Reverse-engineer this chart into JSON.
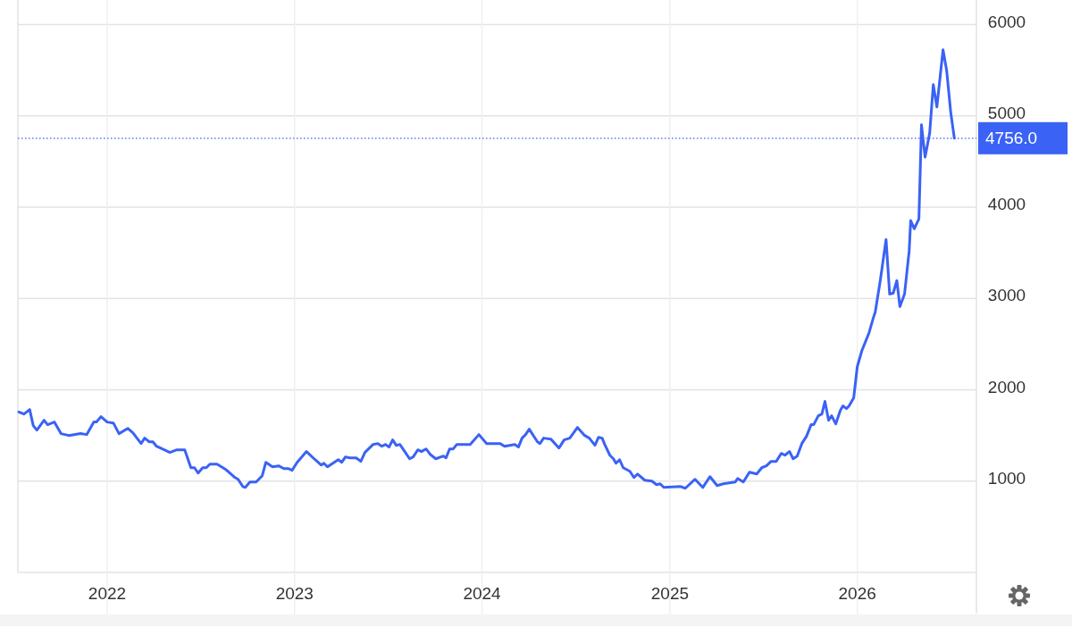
{
  "chart_data": {
    "type": "line",
    "grid": true,
    "marker": "none",
    "line_style": "solid",
    "xlim": [
      "2021-07-11",
      "2026-08-21"
    ],
    "ylim": [
      0,
      6270
    ],
    "xticks": [
      {
        "value": "2022-01-01",
        "label": "2022"
      },
      {
        "value": "2023-01-01",
        "label": "2023"
      },
      {
        "value": "2024-01-01",
        "label": "2024"
      },
      {
        "value": "2025-01-01",
        "label": "2025"
      },
      {
        "value": "2026-01-01",
        "label": "2026"
      }
    ],
    "yticks": [
      1000,
      2000,
      3000,
      4000,
      5000,
      6000
    ],
    "ref_lines": [
      {
        "axis": "y",
        "value": 4756,
        "label": "4756.0",
        "color": "#3a62f5",
        "line_style": "dotted"
      }
    ],
    "series": [
      {
        "color": "#3a62f5",
        "x": [
          "2021-07-13",
          "2021-07-23",
          "2021-08-03",
          "2021-08-10",
          "2021-08-17",
          "2021-08-31",
          "2021-09-07",
          "2021-09-20",
          "2021-10-03",
          "2021-10-18",
          "2021-11-10",
          "2021-11-22",
          "2021-12-06",
          "2021-12-11",
          "2021-12-20",
          "2022-01-01",
          "2022-01-13",
          "2022-01-24",
          "2022-02-10",
          "2022-02-20",
          "2022-03-08",
          "2022-03-15",
          "2022-03-24",
          "2022-03-31",
          "2022-04-07",
          "2022-05-03",
          "2022-05-17",
          "2022-06-01",
          "2022-06-13",
          "2022-06-20",
          "2022-06-27",
          "2022-07-06",
          "2022-07-13",
          "2022-07-20",
          "2022-08-03",
          "2022-08-20",
          "2022-09-07",
          "2022-09-13",
          "2022-09-22",
          "2022-09-27",
          "2022-10-06",
          "2022-10-18",
          "2022-10-30",
          "2022-11-06",
          "2022-11-19",
          "2022-12-01",
          "2022-12-11",
          "2022-12-20",
          "2022-12-27",
          "2023-01-06",
          "2023-01-24",
          "2023-02-08",
          "2023-02-22",
          "2023-02-27",
          "2023-03-06",
          "2023-03-27",
          "2023-04-03",
          "2023-04-10",
          "2023-04-19",
          "2023-05-01",
          "2023-05-10",
          "2023-05-18",
          "2023-06-03",
          "2023-06-12",
          "2023-06-20",
          "2023-06-27",
          "2023-07-04",
          "2023-07-11",
          "2023-07-18",
          "2023-07-25",
          "2023-08-13",
          "2023-08-20",
          "2023-08-29",
          "2023-09-05",
          "2023-09-14",
          "2023-09-22",
          "2023-10-03",
          "2023-10-18",
          "2023-10-23",
          "2023-10-30",
          "2023-11-06",
          "2023-11-13",
          "2023-12-09",
          "2023-12-26",
          "2024-01-10",
          "2024-02-05",
          "2024-02-14",
          "2024-03-05",
          "2024-03-12",
          "2024-03-19",
          "2024-03-26",
          "2024-04-02",
          "2024-04-18",
          "2024-04-23",
          "2024-04-30",
          "2024-05-14",
          "2024-05-30",
          "2024-06-09",
          "2024-06-20",
          "2024-07-05",
          "2024-07-19",
          "2024-07-28",
          "2024-08-08",
          "2024-08-15",
          "2024-08-22",
          "2024-08-27",
          "2024-09-06",
          "2024-09-13",
          "2024-09-18",
          "2024-09-25",
          "2024-10-02",
          "2024-10-15",
          "2024-10-23",
          "2024-10-30",
          "2024-11-13",
          "2024-11-27",
          "2024-12-06",
          "2024-12-13",
          "2024-12-20",
          "2025-01-22",
          "2025-01-31",
          "2025-02-19",
          "2025-03-06",
          "2025-03-20",
          "2025-04-03",
          "2025-04-15",
          "2025-05-08",
          "2025-05-13",
          "2025-05-24",
          "2025-06-05",
          "2025-06-19",
          "2025-06-29",
          "2025-07-08",
          "2025-07-17",
          "2025-07-27",
          "2025-08-06",
          "2025-08-13",
          "2025-08-22",
          "2025-08-29",
          "2025-09-06",
          "2025-09-15",
          "2025-09-24",
          "2025-10-03",
          "2025-10-08",
          "2025-10-17",
          "2025-10-24",
          "2025-10-30",
          "2025-11-06",
          "2025-11-12",
          "2025-11-20",
          "2025-11-29",
          "2025-12-04",
          "2025-12-11",
          "2025-12-16",
          "2025-12-25",
          "2026-01-01",
          "2026-01-10",
          "2026-01-24",
          "2026-02-01",
          "2026-02-05",
          "2026-02-15",
          "2026-02-26",
          "2026-03-05",
          "2026-03-12",
          "2026-03-19",
          "2026-03-25",
          "2026-04-03",
          "2026-04-12",
          "2026-04-15",
          "2026-04-22",
          "2026-05-01",
          "2026-05-06",
          "2026-05-13",
          "2026-05-22",
          "2026-05-29",
          "2026-06-05",
          "2026-06-17",
          "2026-06-24",
          "2026-07-02",
          "2026-07-09"
        ],
        "values": [
          1758,
          1735,
          1784,
          1608,
          1559,
          1667,
          1618,
          1647,
          1520,
          1500,
          1520,
          1510,
          1647,
          1647,
          1706,
          1647,
          1637,
          1520,
          1578,
          1529,
          1412,
          1471,
          1431,
          1431,
          1382,
          1314,
          1343,
          1343,
          1147,
          1147,
          1088,
          1147,
          1147,
          1186,
          1186,
          1127,
          1039,
          1020,
          941,
          931,
          990,
          990,
          1059,
          1206,
          1157,
          1167,
          1137,
          1137,
          1118,
          1206,
          1324,
          1245,
          1176,
          1196,
          1157,
          1235,
          1206,
          1265,
          1255,
          1255,
          1216,
          1314,
          1402,
          1412,
          1382,
          1402,
          1373,
          1451,
          1392,
          1402,
          1245,
          1265,
          1343,
          1324,
          1353,
          1294,
          1245,
          1275,
          1255,
          1353,
          1353,
          1402,
          1402,
          1510,
          1412,
          1412,
          1382,
          1402,
          1373,
          1471,
          1510,
          1569,
          1431,
          1412,
          1471,
          1461,
          1363,
          1451,
          1471,
          1588,
          1500,
          1471,
          1392,
          1480,
          1471,
          1402,
          1284,
          1245,
          1196,
          1235,
          1147,
          1108,
          1039,
          1078,
          1010,
          1000,
          961,
          971,
          931,
          941,
          922,
          1020,
          931,
          1049,
          951,
          971,
          990,
          1029,
          990,
          1098,
          1078,
          1147,
          1167,
          1216,
          1216,
          1304,
          1284,
          1324,
          1245,
          1275,
          1412,
          1490,
          1618,
          1618,
          1716,
          1735,
          1873,
          1667,
          1716,
          1627,
          1775,
          1824,
          1794,
          1824,
          1912,
          2255,
          2431,
          2627,
          2784,
          2853,
          3206,
          3647,
          3049,
          3059,
          3196,
          2912,
          3049,
          3520,
          3853,
          3765,
          3873,
          4902,
          4549,
          4814,
          5343,
          5098,
          5725,
          5500,
          5039,
          4756
        ]
      }
    ]
  }
}
